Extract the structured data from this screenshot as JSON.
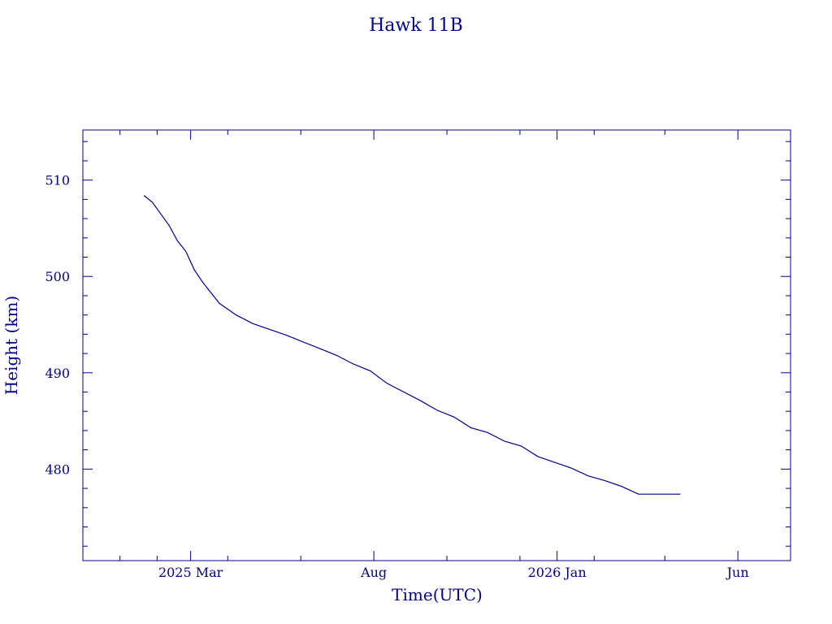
{
  "chart_data": {
    "type": "line",
    "title": "Hawk 11B",
    "xlabel": "Time(UTC)",
    "ylabel": "Height (km)",
    "color": "#00008b",
    "grid": false,
    "xlim": [
      "2024-12-01",
      "2026-07-15"
    ],
    "ylim": [
      470.5,
      515.2
    ],
    "x_ticks": [
      {
        "date": "2025-03-01",
        "label": "2025 Mar"
      },
      {
        "date": "2025-08-01",
        "label": "Aug"
      },
      {
        "date": "2026-01-01",
        "label": "2026 Jan"
      },
      {
        "date": "2026-06-01",
        "label": "Jun"
      }
    ],
    "y_ticks": [
      480,
      490,
      500,
      510
    ],
    "series": [
      {
        "x": [
          "2025-01-21",
          "2025-01-28",
          "2025-02-04",
          "2025-02-11",
          "2025-02-18",
          "2025-02-25",
          "2025-03-04",
          "2025-03-11",
          "2025-03-18",
          "2025-03-25",
          "2025-04-01",
          "2025-04-08",
          "2025-04-22",
          "2025-05-06",
          "2025-05-20",
          "2025-06-03",
          "2025-06-17",
          "2025-07-01",
          "2025-07-15",
          "2025-07-29",
          "2025-08-12",
          "2025-08-26",
          "2025-09-09",
          "2025-09-23",
          "2025-10-07",
          "2025-10-21",
          "2025-11-04",
          "2025-11-18",
          "2025-12-02",
          "2025-12-16",
          "2025-12-30",
          "2026-01-13",
          "2026-01-27",
          "2026-02-10",
          "2026-02-24",
          "2026-03-10",
          "2026-03-24",
          "2026-04-07",
          "2026-04-14"
        ],
        "y": [
          508.4,
          507.7,
          506.5,
          505.3,
          503.7,
          502.6,
          500.7,
          499.4,
          498.3,
          497.2,
          496.6,
          496.0,
          495.1,
          494.5,
          493.9,
          493.2,
          492.5,
          491.8,
          490.9,
          490.2,
          488.9,
          488.0,
          487.1,
          486.1,
          485.4,
          484.3,
          483.8,
          482.9,
          482.4,
          481.3,
          480.7,
          480.1,
          479.3,
          478.8,
          478.2,
          477.4,
          477.4,
          477.4,
          477.4
        ]
      }
    ]
  }
}
